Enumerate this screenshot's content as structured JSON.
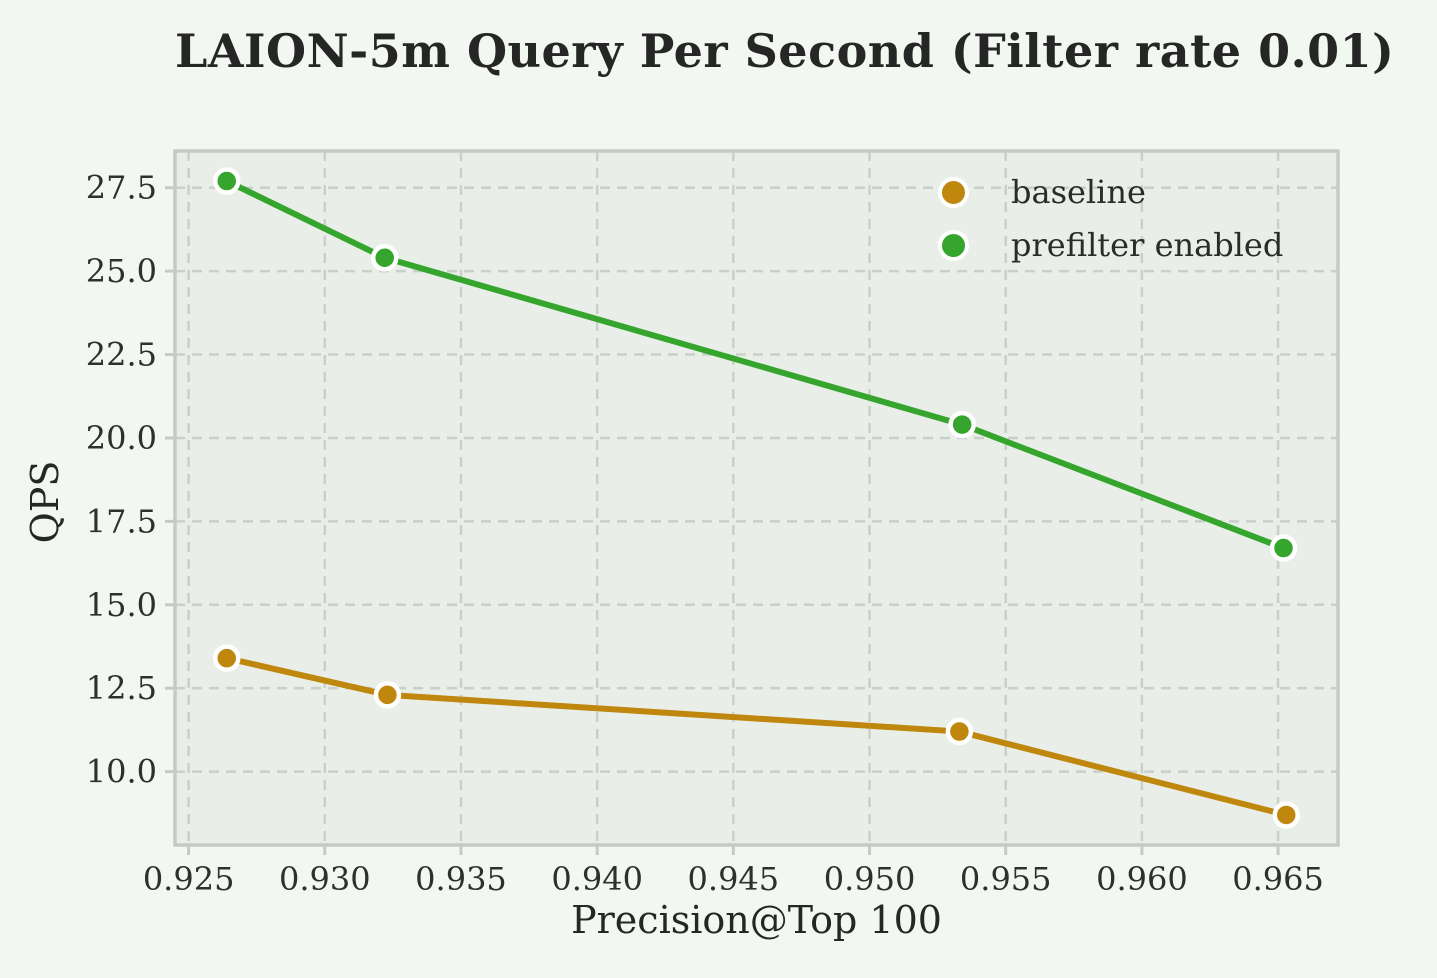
{
  "colors": {
    "figure_background": "#f3f7f1",
    "axes_background": "#e9efe8",
    "grid": "#c9cfc9",
    "spine": "#c6cac6",
    "tick": "#c6cac6",
    "text": "#262626",
    "tick_text": "#2f2f2f",
    "baseline_series": "#bf870e",
    "prefilter_series": "#35a52d",
    "marker_edge": "#ffffff"
  },
  "chart_data": {
    "type": "line",
    "title": "LAION-5m Query Per Second (Filter rate 0.01)",
    "xlabel": "Precision@Top 100",
    "ylabel": "QPS",
    "xlim": [
      0.9245,
      0.9672
    ],
    "ylim": [
      7.8,
      28.6
    ],
    "grid": true,
    "grid_style": "dashed",
    "legend_position": "upper right",
    "x_ticks": [
      0.925,
      0.93,
      0.935,
      0.94,
      0.945,
      0.95,
      0.955,
      0.96,
      0.965
    ],
    "x_tick_labels": [
      "0.925",
      "0.930",
      "0.935",
      "0.940",
      "0.945",
      "0.950",
      "0.955",
      "0.960",
      "0.965"
    ],
    "y_ticks": [
      10.0,
      12.5,
      15.0,
      17.5,
      20.0,
      22.5,
      25.0,
      27.5
    ],
    "y_tick_labels": [
      "10.0",
      "12.5",
      "15.0",
      "17.5",
      "20.0",
      "22.5",
      "25.0",
      "27.5"
    ],
    "series": [
      {
        "name": "baseline",
        "color": "#bf870e",
        "x": [
          0.9264,
          0.9323,
          0.9533,
          0.9653
        ],
        "y": [
          13.4,
          12.3,
          11.2,
          8.7
        ]
      },
      {
        "name": "prefilter enabled",
        "color": "#35a52d",
        "x": [
          0.9264,
          0.9322,
          0.9534,
          0.9652
        ],
        "y": [
          27.7,
          25.4,
          20.4,
          16.7
        ]
      }
    ]
  }
}
